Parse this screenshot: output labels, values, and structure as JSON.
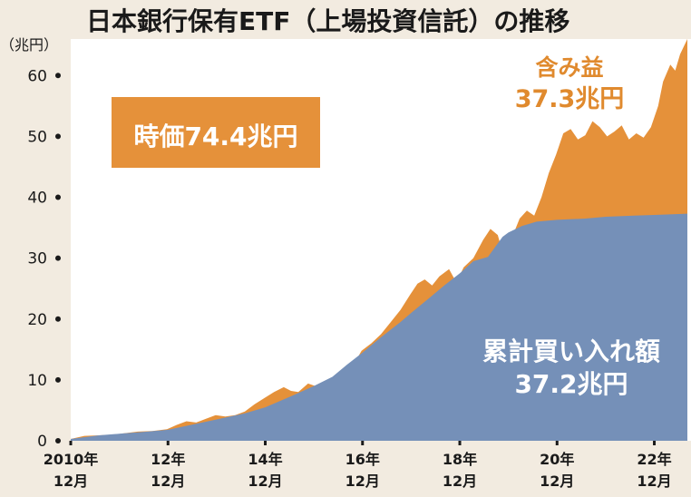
{
  "chart_data": {
    "type": "area",
    "title": "日本銀行保有ETF（上場投資信託）の推移",
    "unit_label": "（兆円）",
    "ylim": [
      0,
      66
    ],
    "y_ticks": [
      0,
      10,
      20,
      30,
      40,
      50,
      60
    ],
    "x_tick_labels": [
      {
        "year": "2010年",
        "month": "12月"
      },
      {
        "year": "12年",
        "month": "12月"
      },
      {
        "year": "14年",
        "month": "12月"
      },
      {
        "year": "16年",
        "month": "12月"
      },
      {
        "year": "18年",
        "month": "12月"
      },
      {
        "year": "20年",
        "month": "12月"
      },
      {
        "year": "22年",
        "month": "12月"
      }
    ],
    "x_tick_positions": [
      2010.92,
      2012.92,
      2014.92,
      2016.92,
      2018.92,
      2020.92,
      2022.92
    ],
    "xlim": [
      2010.92,
      2023.6
    ],
    "series": [
      {
        "key": "market",
        "color": "#e5913a",
        "points": [
          [
            2010.92,
            0.3
          ],
          [
            2011.2,
            0.8
          ],
          [
            2011.5,
            0.9
          ],
          [
            2011.8,
            1.0
          ],
          [
            2012.0,
            1.2
          ],
          [
            2012.3,
            1.5
          ],
          [
            2012.6,
            1.6
          ],
          [
            2012.9,
            1.9
          ],
          [
            2013.1,
            2.6
          ],
          [
            2013.3,
            3.2
          ],
          [
            2013.5,
            3.0
          ],
          [
            2013.7,
            3.6
          ],
          [
            2013.9,
            4.2
          ],
          [
            2014.1,
            4.0
          ],
          [
            2014.3,
            4.2
          ],
          [
            2014.5,
            4.8
          ],
          [
            2014.7,
            6.0
          ],
          [
            2014.9,
            7.0
          ],
          [
            2015.1,
            8.0
          ],
          [
            2015.3,
            8.8
          ],
          [
            2015.45,
            8.2
          ],
          [
            2015.6,
            8.0
          ],
          [
            2015.8,
            9.4
          ],
          [
            2015.95,
            9.0
          ],
          [
            2016.1,
            8.5
          ],
          [
            2016.3,
            9.3
          ],
          [
            2016.5,
            10.0
          ],
          [
            2016.7,
            12.0
          ],
          [
            2016.9,
            14.8
          ],
          [
            2017.1,
            16.0
          ],
          [
            2017.3,
            17.5
          ],
          [
            2017.5,
            19.5
          ],
          [
            2017.7,
            21.5
          ],
          [
            2017.9,
            24.0
          ],
          [
            2018.05,
            25.8
          ],
          [
            2018.2,
            26.5
          ],
          [
            2018.35,
            25.5
          ],
          [
            2018.5,
            27.0
          ],
          [
            2018.7,
            28.2
          ],
          [
            2018.85,
            26.0
          ],
          [
            2019.0,
            28.5
          ],
          [
            2019.2,
            30.0
          ],
          [
            2019.4,
            33.0
          ],
          [
            2019.55,
            34.8
          ],
          [
            2019.7,
            33.8
          ],
          [
            2019.8,
            31.0
          ],
          [
            2019.95,
            33.5
          ],
          [
            2020.05,
            34.5
          ],
          [
            2020.15,
            36.5
          ],
          [
            2020.3,
            37.8
          ],
          [
            2020.45,
            37.0
          ],
          [
            2020.6,
            40.0
          ],
          [
            2020.75,
            44.0
          ],
          [
            2020.9,
            47.0
          ],
          [
            2021.05,
            50.5
          ],
          [
            2021.2,
            51.2
          ],
          [
            2021.35,
            49.5
          ],
          [
            2021.5,
            50.2
          ],
          [
            2021.65,
            52.5
          ],
          [
            2021.8,
            51.5
          ],
          [
            2021.95,
            50.0
          ],
          [
            2022.1,
            50.8
          ],
          [
            2022.25,
            51.8
          ],
          [
            2022.4,
            49.5
          ],
          [
            2022.55,
            50.5
          ],
          [
            2022.7,
            49.8
          ],
          [
            2022.85,
            51.5
          ],
          [
            2023.0,
            55.0
          ],
          [
            2023.1,
            59.0
          ],
          [
            2023.25,
            61.8
          ],
          [
            2023.35,
            60.8
          ],
          [
            2023.45,
            63.5
          ],
          [
            2023.6,
            66.0
          ]
        ]
      },
      {
        "key": "cumulative",
        "color": "#7590b8",
        "points": [
          [
            2010.92,
            0.3
          ],
          [
            2011.5,
            0.9
          ],
          [
            2012.0,
            1.2
          ],
          [
            2012.5,
            1.5
          ],
          [
            2012.92,
            1.8
          ],
          [
            2013.5,
            2.8
          ],
          [
            2013.92,
            3.5
          ],
          [
            2014.5,
            4.5
          ],
          [
            2014.92,
            5.5
          ],
          [
            2015.5,
            7.5
          ],
          [
            2015.92,
            9.0
          ],
          [
            2016.3,
            10.5
          ],
          [
            2016.6,
            12.5
          ],
          [
            2016.92,
            14.5
          ],
          [
            2017.3,
            17.0
          ],
          [
            2017.7,
            19.5
          ],
          [
            2017.92,
            21.0
          ],
          [
            2018.3,
            23.5
          ],
          [
            2018.6,
            25.5
          ],
          [
            2018.92,
            27.5
          ],
          [
            2019.2,
            29.5
          ],
          [
            2019.5,
            30.2
          ],
          [
            2019.8,
            33.5
          ],
          [
            2019.92,
            34.2
          ],
          [
            2020.2,
            35.3
          ],
          [
            2020.5,
            36.0
          ],
          [
            2020.92,
            36.3
          ],
          [
            2021.5,
            36.5
          ],
          [
            2021.92,
            36.8
          ],
          [
            2022.5,
            37.0
          ],
          [
            2022.92,
            37.1
          ],
          [
            2023.3,
            37.2
          ],
          [
            2023.6,
            37.3
          ]
        ]
      }
    ],
    "annotations": {
      "total": "時価74.4兆円",
      "gain_label": "含み益",
      "gain_value": "37.3兆円",
      "cumulative_label": "累計買い入れ額",
      "cumulative_value": "37.2兆円"
    }
  }
}
